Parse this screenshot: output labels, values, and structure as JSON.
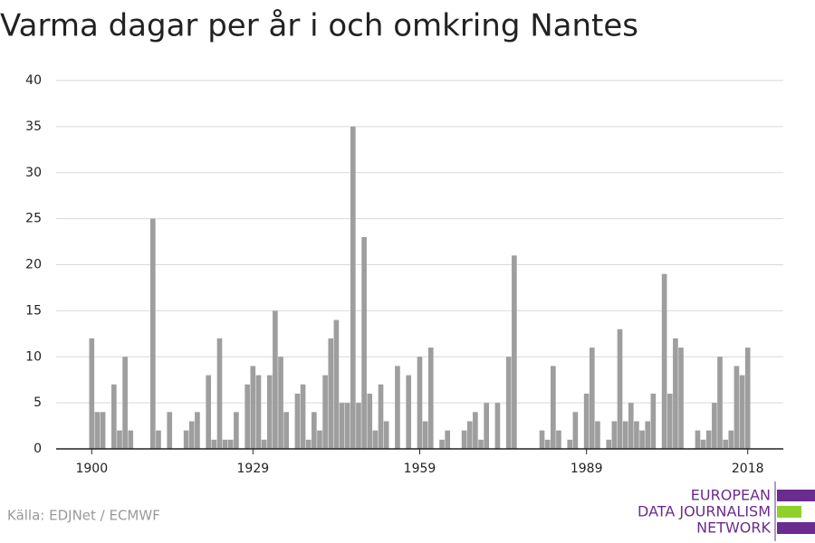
{
  "chart_data": {
    "type": "bar",
    "title": "Varma dagar per år i och omkring Nantes",
    "source": "Källa: EDJNet / ECMWF",
    "logo": [
      "EUROPEAN",
      "DATA JOURNALISM",
      "NETWORK"
    ],
    "color": "#9e9e9e",
    "x": [
      1900,
      1901,
      1902,
      1903,
      1904,
      1905,
      1906,
      1907,
      1908,
      1909,
      1910,
      1911,
      1912,
      1913,
      1914,
      1915,
      1916,
      1917,
      1918,
      1919,
      1920,
      1921,
      1922,
      1923,
      1924,
      1925,
      1926,
      1927,
      1928,
      1929,
      1930,
      1931,
      1932,
      1933,
      1934,
      1935,
      1936,
      1937,
      1938,
      1939,
      1940,
      1941,
      1942,
      1943,
      1944,
      1945,
      1946,
      1947,
      1948,
      1949,
      1950,
      1951,
      1952,
      1953,
      1954,
      1955,
      1956,
      1957,
      1958,
      1959,
      1960,
      1961,
      1962,
      1963,
      1964,
      1965,
      1966,
      1967,
      1968,
      1969,
      1970,
      1971,
      1972,
      1973,
      1974,
      1975,
      1976,
      1977,
      1978,
      1979,
      1980,
      1981,
      1982,
      1983,
      1984,
      1985,
      1986,
      1987,
      1988,
      1989,
      1990,
      1991,
      1992,
      1993,
      1994,
      1995,
      1996,
      1997,
      1998,
      1999,
      2000,
      2001,
      2002,
      2003,
      2004,
      2005,
      2006,
      2007,
      2008,
      2009,
      2010,
      2011,
      2012,
      2013,
      2014,
      2015,
      2016,
      2017,
      2018
    ],
    "values": [
      12,
      4,
      4,
      0,
      7,
      2,
      10,
      2,
      0,
      0,
      0,
      25,
      2,
      0,
      4,
      0,
      0,
      2,
      3,
      4,
      0,
      8,
      1,
      12,
      1,
      1,
      4,
      0,
      7,
      9,
      8,
      1,
      8,
      15,
      10,
      4,
      0,
      6,
      7,
      1,
      4,
      2,
      8,
      12,
      14,
      5,
      5,
      35,
      5,
      23,
      6,
      2,
      7,
      3,
      0,
      9,
      0,
      8,
      0,
      10,
      3,
      11,
      0,
      1,
      2,
      0,
      0,
      2,
      3,
      4,
      1,
      5,
      0,
      5,
      0,
      10,
      21,
      0,
      0,
      0,
      0,
      2,
      1,
      9,
      2,
      0,
      1,
      4,
      0,
      6,
      11,
      3,
      0,
      1,
      3,
      13,
      3,
      5,
      3,
      2,
      3,
      6,
      0,
      19,
      6,
      12,
      11,
      0,
      0,
      2,
      1,
      2,
      5,
      10,
      1,
      2,
      9,
      8,
      11
    ],
    "xlim": [
      1893.6,
      2024.4
    ],
    "xticks": [
      1900,
      1929,
      1959,
      1989,
      2018
    ],
    "ylim": [
      0,
      40
    ],
    "yticks": [
      0,
      5,
      10,
      15,
      20,
      25,
      30,
      35,
      40
    ],
    "grid": true
  }
}
